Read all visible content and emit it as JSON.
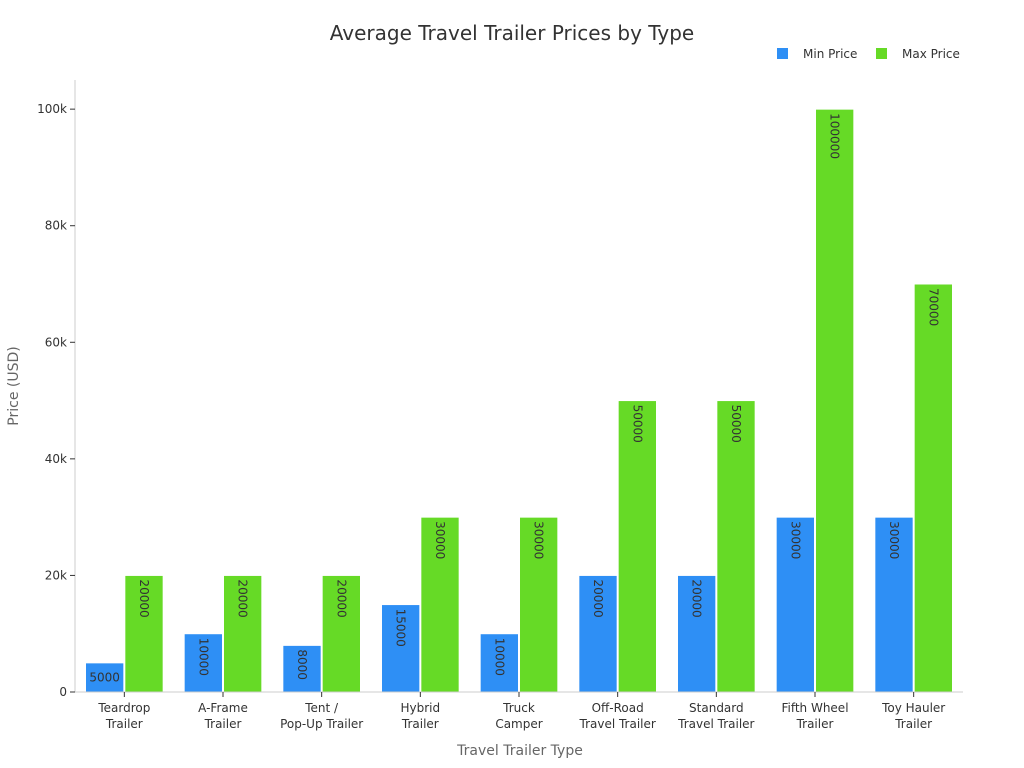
{
  "chart_data": {
    "type": "bar",
    "title": "Average Travel Trailer Prices by Type",
    "xlabel": "Travel Trailer Type",
    "ylabel": "Price (USD)",
    "ylim": [
      0,
      105000
    ],
    "yticks": [
      0,
      20000,
      40000,
      60000,
      80000,
      100000
    ],
    "ytick_labels": [
      "0",
      "20k",
      "40k",
      "60k",
      "80k",
      "100k"
    ],
    "grid": false,
    "legend_position": "top-right",
    "categories": [
      [
        "Teardrop",
        "Trailer"
      ],
      [
        "A-Frame",
        "Trailer"
      ],
      [
        "Tent /",
        "Pop-Up Trailer"
      ],
      [
        "Hybrid",
        "Trailer"
      ],
      [
        "Truck",
        "Camper"
      ],
      [
        "Off-Road",
        "Travel Trailer"
      ],
      [
        "Standard",
        "Travel Trailer"
      ],
      [
        "Fifth Wheel",
        "Trailer"
      ],
      [
        "Toy Hauler",
        "Trailer"
      ]
    ],
    "series": [
      {
        "name": "Min Price",
        "color": "#2e8ff5",
        "values": [
          5000,
          10000,
          8000,
          15000,
          10000,
          20000,
          20000,
          30000,
          30000
        ]
      },
      {
        "name": "Max Price",
        "color": "#66da26",
        "values": [
          20000,
          20000,
          20000,
          30000,
          30000,
          50000,
          50000,
          100000,
          70000
        ]
      }
    ]
  }
}
